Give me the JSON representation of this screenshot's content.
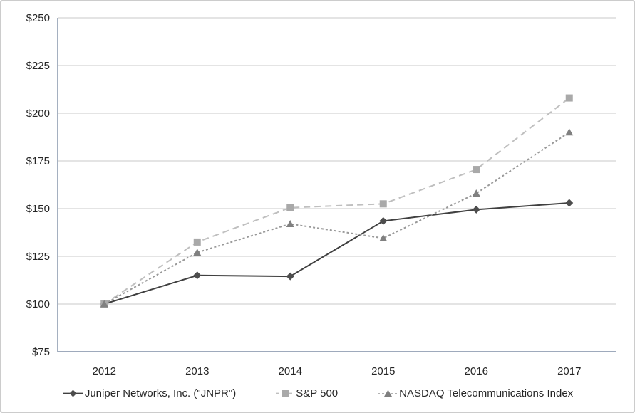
{
  "chart_data": {
    "type": "line",
    "title": "",
    "xlabel": "",
    "ylabel": "",
    "x": [
      2012,
      2013,
      2014,
      2015,
      2016,
      2017
    ],
    "x_labels": [
      "2012",
      "2013",
      "2014",
      "2015",
      "2016",
      "2017"
    ],
    "ylim": [
      75,
      250
    ],
    "ytick_step": 25,
    "yticks": [
      75,
      100,
      125,
      150,
      175,
      200,
      225,
      250
    ],
    "ytick_labels": [
      "$75",
      "$100",
      "$125",
      "$150",
      "$175",
      "$200",
      "$225",
      "$250"
    ],
    "grid": "horizontal",
    "legend_position": "bottom",
    "series": [
      {
        "id": "jnpr",
        "name": "Juniper Networks, Inc. (\"JNPR\")",
        "values": [
          100,
          115,
          114.5,
          143.5,
          149.5,
          153
        ],
        "marker": "diamond",
        "line_style": "solid",
        "line_color": "#404040",
        "marker_color": "#4d4d4d"
      },
      {
        "id": "sp500",
        "name": "S&P 500",
        "values": [
          100,
          132.5,
          150.5,
          152.5,
          170.5,
          208
        ],
        "marker": "square",
        "line_style": "long-dash",
        "line_color": "#bfbfbf",
        "marker_color": "#a9a9a9"
      },
      {
        "id": "nasdaq-telecom",
        "name": "NASDAQ Telecommunications Index",
        "values": [
          100,
          127,
          142,
          134.5,
          158,
          190
        ],
        "marker": "triangle",
        "line_style": "short-dash",
        "line_color": "#999999",
        "marker_color": "#808080"
      }
    ],
    "colors": {
      "gridline": "#c9c9c9",
      "axis_line": "#7f8ea6",
      "tick_text": "#262626",
      "background": "#ffffff",
      "frame_border": "#cccccc"
    }
  }
}
